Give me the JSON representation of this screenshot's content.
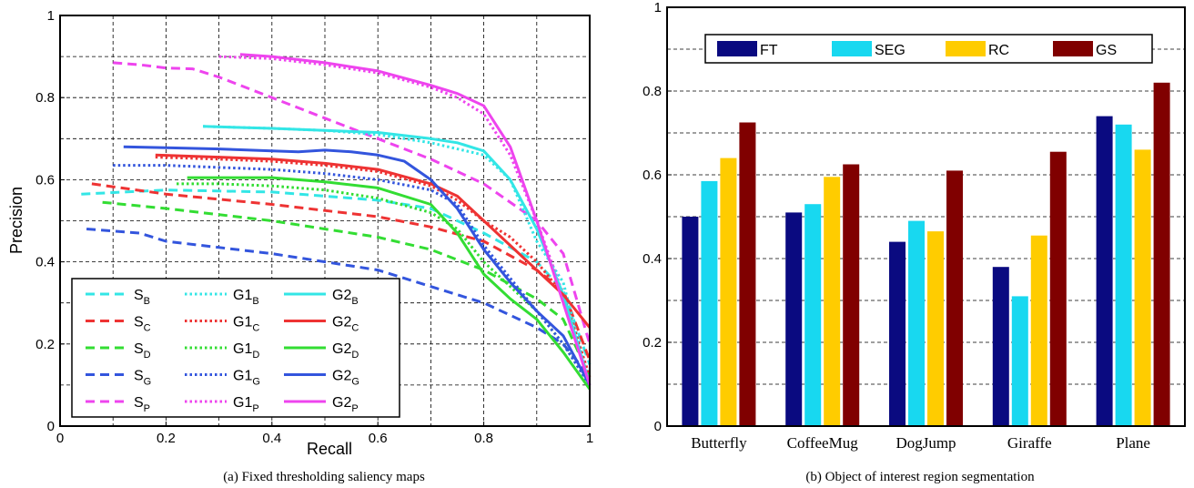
{
  "chart_data": [
    {
      "type": "line",
      "caption": "(a)  Fixed thresholding saliency maps",
      "xlabel": "Recall",
      "ylabel": "Precision",
      "xlim": [
        0,
        1
      ],
      "ylim": [
        0,
        1
      ],
      "xticks": [
        "0",
        "0.2",
        "0.4",
        "0.6",
        "0.8",
        "1"
      ],
      "yticks": [
        "0",
        "0.2",
        "0.4",
        "0.6",
        "0.8",
        "1"
      ],
      "grid": true,
      "legend_position": "bottom-left",
      "series": [
        {
          "name": "S",
          "sub": "B",
          "color": "#33e6e6",
          "dash": "dashed",
          "x": [
            0.04,
            0.2,
            0.4,
            0.6,
            0.7,
            0.8,
            0.9,
            0.95,
            1.0
          ],
          "y": [
            0.565,
            0.575,
            0.57,
            0.55,
            0.53,
            0.47,
            0.4,
            0.33,
            0.15
          ]
        },
        {
          "name": "S",
          "sub": "C",
          "color": "#ee3333",
          "dash": "dashed",
          "x": [
            0.06,
            0.2,
            0.4,
            0.6,
            0.7,
            0.8,
            0.9,
            0.95,
            1.0
          ],
          "y": [
            0.59,
            0.565,
            0.54,
            0.51,
            0.485,
            0.45,
            0.38,
            0.33,
            0.16
          ]
        },
        {
          "name": "S",
          "sub": "D",
          "color": "#33dd33",
          "dash": "dashed",
          "x": [
            0.08,
            0.2,
            0.4,
            0.6,
            0.7,
            0.8,
            0.9,
            0.95,
            1.0
          ],
          "y": [
            0.545,
            0.53,
            0.5,
            0.46,
            0.43,
            0.38,
            0.31,
            0.26,
            0.12
          ]
        },
        {
          "name": "S",
          "sub": "G",
          "color": "#3355dd",
          "dash": "dashed",
          "x": [
            0.05,
            0.15,
            0.2,
            0.4,
            0.6,
            0.7,
            0.8,
            0.9,
            0.95,
            1.0
          ],
          "y": [
            0.48,
            0.47,
            0.45,
            0.42,
            0.38,
            0.34,
            0.3,
            0.24,
            0.2,
            0.12
          ]
        },
        {
          "name": "S",
          "sub": "P",
          "color": "#ee44ee",
          "dash": "dashed",
          "x": [
            0.1,
            0.15,
            0.2,
            0.25,
            0.3,
            0.4,
            0.5,
            0.6,
            0.7,
            0.8,
            0.9,
            0.95,
            1.0
          ],
          "y": [
            0.885,
            0.88,
            0.872,
            0.87,
            0.85,
            0.8,
            0.75,
            0.7,
            0.65,
            0.59,
            0.5,
            0.42,
            0.2
          ]
        },
        {
          "name": "G1",
          "sub": "B",
          "color": "#33e6e6",
          "dash": "dotted",
          "x": [
            0.27,
            0.4,
            0.5,
            0.6,
            0.7,
            0.8,
            0.85,
            0.9,
            0.95,
            1.0
          ],
          "y": [
            0.73,
            0.725,
            0.72,
            0.71,
            0.69,
            0.66,
            0.6,
            0.45,
            0.35,
            0.1
          ]
        },
        {
          "name": "G1",
          "sub": "C",
          "color": "#ee3333",
          "dash": "dotted",
          "x": [
            0.18,
            0.3,
            0.4,
            0.5,
            0.6,
            0.7,
            0.75,
            0.8,
            0.85,
            0.9,
            0.95,
            1.0
          ],
          "y": [
            0.655,
            0.65,
            0.645,
            0.635,
            0.62,
            0.585,
            0.55,
            0.5,
            0.46,
            0.4,
            0.32,
            0.12
          ]
        },
        {
          "name": "G1",
          "sub": "D",
          "color": "#33dd33",
          "dash": "dotted",
          "x": [
            0.22,
            0.3,
            0.4,
            0.5,
            0.6,
            0.7,
            0.75,
            0.8,
            0.85,
            0.9,
            0.95,
            1.0
          ],
          "y": [
            0.59,
            0.59,
            0.585,
            0.575,
            0.555,
            0.52,
            0.48,
            0.4,
            0.34,
            0.28,
            0.2,
            0.1
          ]
        },
        {
          "name": "G1",
          "sub": "G",
          "color": "#3355dd",
          "dash": "dotted",
          "x": [
            0.1,
            0.2,
            0.3,
            0.4,
            0.5,
            0.6,
            0.7,
            0.75,
            0.8,
            0.85,
            0.9,
            0.95,
            1.0
          ],
          "y": [
            0.635,
            0.635,
            0.63,
            0.625,
            0.615,
            0.6,
            0.575,
            0.54,
            0.44,
            0.36,
            0.28,
            0.2,
            0.1
          ]
        },
        {
          "name": "G1",
          "sub": "P",
          "color": "#ee44ee",
          "dash": "dotted",
          "x": [
            0.3,
            0.4,
            0.5,
            0.6,
            0.7,
            0.75,
            0.8,
            0.85,
            0.9,
            0.95,
            1.0
          ],
          "y": [
            0.9,
            0.895,
            0.88,
            0.86,
            0.825,
            0.8,
            0.76,
            0.66,
            0.5,
            0.32,
            0.1
          ]
        },
        {
          "name": "G2",
          "sub": "B",
          "color": "#33e6e6",
          "dash": "solid",
          "x": [
            0.27,
            0.4,
            0.5,
            0.6,
            0.7,
            0.75,
            0.8,
            0.85,
            0.9,
            0.95,
            1.0
          ],
          "y": [
            0.73,
            0.725,
            0.72,
            0.715,
            0.7,
            0.69,
            0.67,
            0.6,
            0.48,
            0.32,
            0.1
          ]
        },
        {
          "name": "G2",
          "sub": "C",
          "color": "#ee3333",
          "dash": "solid",
          "x": [
            0.18,
            0.3,
            0.4,
            0.5,
            0.6,
            0.7,
            0.75,
            0.8,
            0.85,
            0.9,
            0.95,
            1.0
          ],
          "y": [
            0.66,
            0.655,
            0.65,
            0.64,
            0.625,
            0.59,
            0.56,
            0.5,
            0.44,
            0.38,
            0.32,
            0.24
          ]
        },
        {
          "name": "G2",
          "sub": "D",
          "color": "#33dd33",
          "dash": "solid",
          "x": [
            0.24,
            0.3,
            0.4,
            0.5,
            0.6,
            0.7,
            0.75,
            0.8,
            0.85,
            0.9,
            0.95,
            1.0
          ],
          "y": [
            0.605,
            0.605,
            0.605,
            0.595,
            0.58,
            0.54,
            0.47,
            0.37,
            0.31,
            0.26,
            0.18,
            0.09
          ]
        },
        {
          "name": "G2",
          "sub": "G",
          "color": "#3355dd",
          "dash": "solid",
          "x": [
            0.12,
            0.2,
            0.3,
            0.4,
            0.45,
            0.5,
            0.55,
            0.6,
            0.65,
            0.7,
            0.75,
            0.8,
            0.85,
            0.9,
            0.95,
            1.0
          ],
          "y": [
            0.68,
            0.678,
            0.675,
            0.67,
            0.668,
            0.672,
            0.668,
            0.66,
            0.645,
            0.6,
            0.53,
            0.43,
            0.35,
            0.28,
            0.22,
            0.1
          ]
        },
        {
          "name": "G2",
          "sub": "P",
          "color": "#ee44ee",
          "dash": "solid",
          "x": [
            0.34,
            0.4,
            0.5,
            0.6,
            0.7,
            0.75,
            0.8,
            0.85,
            0.9,
            0.95,
            1.0
          ],
          "y": [
            0.905,
            0.9,
            0.885,
            0.865,
            0.83,
            0.81,
            0.78,
            0.68,
            0.5,
            0.3,
            0.1
          ]
        }
      ]
    },
    {
      "type": "bar",
      "caption": "(b)  Object of interest region segmentation",
      "categories": [
        "Butterfly",
        "CoffeeMug",
        "DogJump",
        "Giraffe",
        "Plane"
      ],
      "ylim": [
        0,
        1
      ],
      "yticks": [
        "0",
        "0.2",
        "0.4",
        "0.6",
        "0.8",
        "1"
      ],
      "grid": true,
      "legend_position": "top",
      "series": [
        {
          "name": "FT",
          "color": "#0a0a80",
          "values": [
            0.5,
            0.51,
            0.44,
            0.38,
            0.74
          ]
        },
        {
          "name": "SEG",
          "color": "#18d8f0",
          "values": [
            0.585,
            0.53,
            0.49,
            0.31,
            0.72
          ]
        },
        {
          "name": "RC",
          "color": "#ffcc00",
          "values": [
            0.64,
            0.595,
            0.465,
            0.455,
            0.66
          ]
        },
        {
          "name": "GS",
          "color": "#800000",
          "values": [
            0.725,
            0.625,
            0.61,
            0.655,
            0.82
          ]
        }
      ]
    }
  ]
}
